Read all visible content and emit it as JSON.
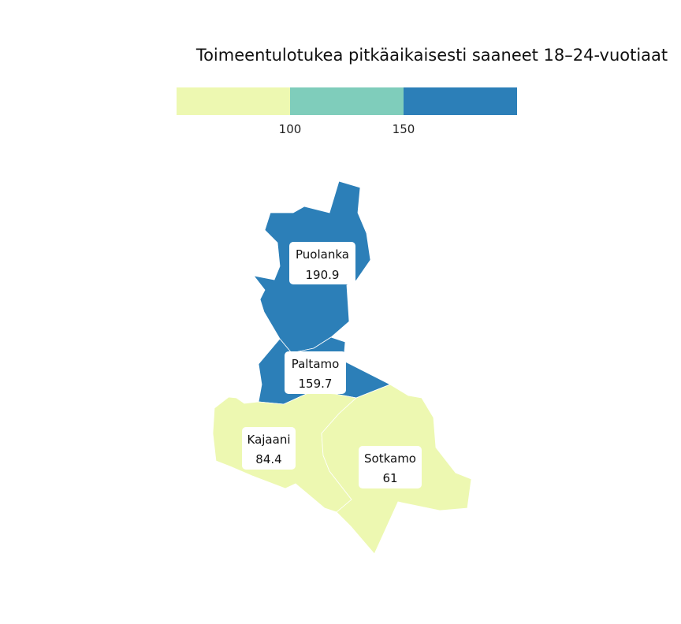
{
  "chart_data": {
    "type": "choropleth",
    "title": "Toimeentulotukea pitkäaikaisesti saaneet 18–24-vuotiaat",
    "legend": {
      "placement": "top",
      "breaks": [
        100,
        150
      ],
      "tick_labels": [
        "100",
        "150"
      ],
      "colors": [
        "#edf8b1",
        "#7fcdbb",
        "#2c7fb8"
      ]
    },
    "regions": [
      {
        "name": "Puolanka",
        "value": 190.9,
        "value_label": "190.9"
      },
      {
        "name": "Paltamo",
        "value": 159.7,
        "value_label": "159.7"
      },
      {
        "name": "Kajaani",
        "value": 84.4,
        "value_label": "84.4"
      },
      {
        "name": "Sotkamo",
        "value": 61,
        "value_label": "61"
      }
    ]
  }
}
